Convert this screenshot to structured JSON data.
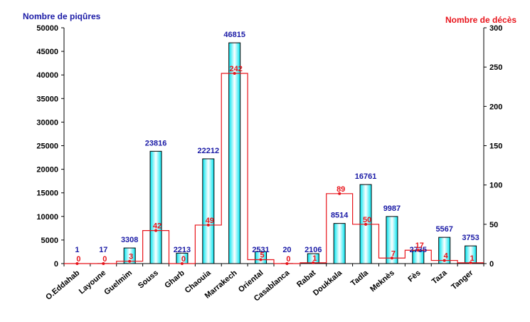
{
  "colors": {
    "bar_fill_edge": "#00e5f0",
    "bar_fill_center": "#ffffff",
    "bar_stroke": "#000000",
    "line": "#e8141b",
    "left_label": "#1a1aa6",
    "right_label": "#e8141b"
  },
  "chart_data": {
    "type": "bar",
    "title": "",
    "categories": [
      "O.Eddahab",
      "Layoune",
      "Guelmim",
      "Souss",
      "Gharb",
      "Chaouia",
      "Marrakech",
      "Oriental",
      "Casablanca",
      "Rabat",
      "Doukkala",
      "Tadla",
      "Meknès",
      "Fès",
      "Taza",
      "Tanger"
    ],
    "series": [
      {
        "name": "Nombre de piqûres",
        "axis": "left",
        "kind": "bar",
        "values": [
          1,
          17,
          3308,
          23816,
          2213,
          22212,
          46815,
          2531,
          20,
          2106,
          8514,
          16761,
          9987,
          2735,
          5567,
          3753
        ]
      },
      {
        "name": "Nombre de décès",
        "axis": "right",
        "kind": "step",
        "values": [
          0,
          0,
          3,
          42,
          0,
          49,
          242,
          5,
          0,
          1,
          89,
          50,
          7,
          17,
          4,
          1
        ]
      }
    ],
    "ylabel_left": "Nombre de piqûres",
    "ylabel_right": "Nombre de décès",
    "ylim_left": [
      0,
      50000
    ],
    "ylim_right": [
      0,
      300
    ],
    "yticks_left": [
      "0",
      "5000",
      "10000",
      "15000",
      "20000",
      "25000",
      "30000",
      "35000",
      "40000",
      "45000",
      "50000"
    ],
    "yticks_right": [
      "0",
      "50",
      "100",
      "150",
      "200",
      "250",
      "300"
    ],
    "grid": false
  }
}
